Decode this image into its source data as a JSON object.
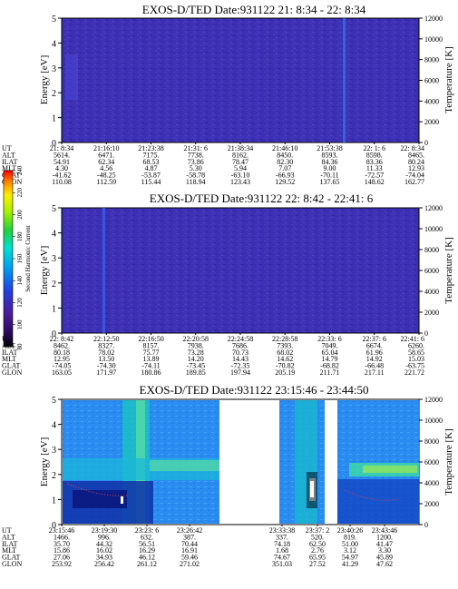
{
  "colorbar": {
    "label": "Second Harmonic Current",
    "ticks": [
      "80",
      "100",
      "120",
      "140",
      "160",
      "180",
      "200",
      "220",
      "240"
    ]
  },
  "chart_data": [
    {
      "type": "heatmap",
      "title": "EXOS-D/TED   Date:931122  21: 8:34 - 22: 8:34",
      "ylabel": "Energy [eV]",
      "y2label": "Temperature [K]",
      "ylim": [
        0,
        5
      ],
      "y2lim": [
        0,
        12000
      ],
      "yticks": [
        "0",
        "1",
        "2",
        "3",
        "4",
        "5"
      ],
      "y2ticks": [
        "0",
        "2000",
        "4000",
        "6000",
        "8000",
        "10000",
        "12000"
      ],
      "orbit_labels": [
        "UT",
        "ALT",
        "ILAT",
        "MLT",
        "GLAT",
        "GLON"
      ],
      "columns": [
        [
          "21: 8:34",
          "5614.",
          "54.91",
          "4.30",
          "-41.62",
          "110.08"
        ],
        [
          "21:16:10",
          "6471.",
          "62.34",
          "4.56",
          "-48.25",
          "112.59"
        ],
        [
          "21:23:38",
          "7175.",
          "68.53",
          "4.87",
          "-53.87",
          "115.44"
        ],
        [
          "21:31: 6",
          "7738.",
          "73.86",
          "5.30",
          "-58.78",
          "118.94"
        ],
        [
          "21:38:34",
          "8162.",
          "78.47",
          "5.94",
          "-63.10",
          "123.43"
        ],
        [
          "21:46:10",
          "8450.",
          "82.30",
          "7.07",
          "-66.93",
          "129.52"
        ],
        [
          "21:53:38",
          "8593.",
          "84.36",
          "9.00",
          "-70.11",
          "137.65"
        ],
        [
          "22: 1: 6",
          "8598.",
          "83.36",
          "11.33",
          "-72.57",
          "148.62"
        ],
        [
          "22: 8:34",
          "8465.",
          "80.24",
          "12.93",
          "-74.04",
          "162.77"
        ]
      ]
    },
    {
      "type": "heatmap",
      "title": "EXOS-D/TED   Date:931122  22: 8:42 - 22:41: 6",
      "ylabel": "Energy [eV]",
      "y2label": "Temperature [K]",
      "ylim": [
        0,
        5
      ],
      "y2lim": [
        0,
        12000
      ],
      "yticks": [
        "0",
        "1",
        "2",
        "3",
        "4",
        "5"
      ],
      "y2ticks": [
        "0",
        "2000",
        "4000",
        "6000",
        "8000",
        "10000",
        "12000"
      ],
      "orbit_labels": [
        "UT",
        "ALT",
        "ILAT",
        "MLT",
        "GLAT",
        "GLON"
      ],
      "columns": [
        [
          "22: 8:42",
          "8462.",
          "80.18",
          "12.95",
          "-74.05",
          "163.05"
        ],
        [
          "22:12:50",
          "8327.",
          "78.02",
          "13.50",
          "-74.30",
          "171.97"
        ],
        [
          "22:16:50",
          "8157.",
          "75.77",
          "13.89",
          "-74.11",
          "180.86"
        ],
        [
          "22:20:58",
          "7938.",
          "73.28",
          "14.20",
          "-73.45",
          "189.85"
        ],
        [
          "22:24:58",
          "7686.",
          "70.73",
          "14.43",
          "-72.35",
          "197.94"
        ],
        [
          "22:28:58",
          "7393.",
          "68.02",
          "14.62",
          "-70.82",
          "205.19"
        ],
        [
          "22:33: 6",
          "7049.",
          "65.04",
          "14.79",
          "-68.82",
          "211.71"
        ],
        [
          "22:37: 6",
          "6674.",
          "61.96",
          "14.92",
          "-66.48",
          "217.11"
        ],
        [
          "22:41: 6",
          "6260.",
          "58.65",
          "15.03",
          "-63.75",
          "221.72"
        ]
      ]
    },
    {
      "type": "heatmap",
      "title": "EXOS-D/TED   Date:931122  23:15:46 - 23:44:50",
      "ylabel": "Energy [eV]",
      "y2label": "Temperature [K]",
      "ylim": [
        0,
        5
      ],
      "y2lim": [
        0,
        12000
      ],
      "yticks": [
        "0",
        "1",
        "2",
        "3",
        "4",
        "5"
      ],
      "y2ticks": [
        "0",
        "2000",
        "4000",
        "6000",
        "8000",
        "10000",
        "12000"
      ],
      "orbit_labels": [
        "UT",
        "ALT",
        "ILAT",
        "MLT",
        "GLAT",
        "GLON"
      ],
      "columns": [
        [
          "23:15:46",
          "1466.",
          "35.70",
          "15.86",
          "27.06",
          "253.92"
        ],
        [
          "23:19:30",
          "996.",
          "44.32",
          "16.02",
          "34.93",
          "256.42"
        ],
        [
          "23:23: 6",
          "632.",
          "56.51",
          "16.29",
          "46.12",
          "261.12"
        ],
        [
          "23:26:42",
          "387.",
          "70.44",
          "16.91",
          "59.46",
          "271.02"
        ],
        [
          "23:33:38",
          "337.",
          "74.18",
          "1.68",
          "74.67",
          "351.03"
        ],
        [
          "23:37: 2",
          "520.",
          "62.50",
          "2.76",
          "65.95",
          "27.52"
        ],
        [
          "23:40:26",
          "819.",
          "51.00",
          "3.12",
          "54.97",
          "41.29"
        ],
        [
          "23:43:46",
          "1200.",
          "41.47",
          "3.30",
          "45.89",
          "47.62"
        ]
      ]
    }
  ]
}
